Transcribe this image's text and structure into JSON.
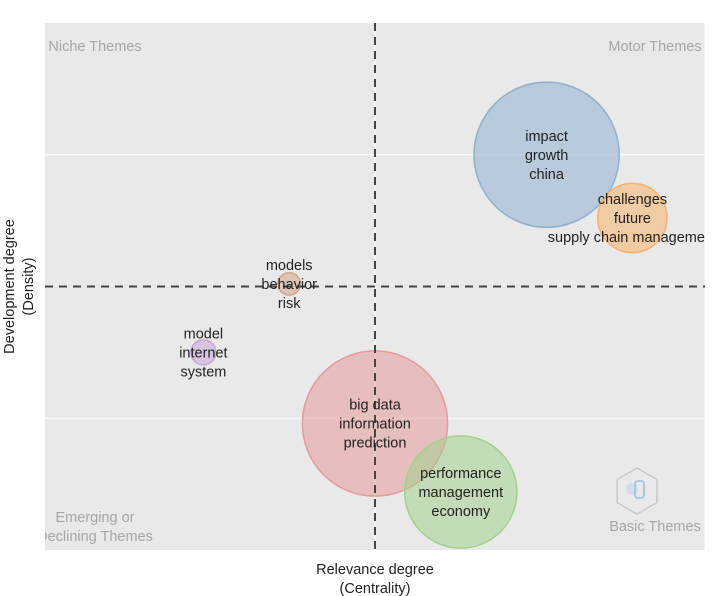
{
  "colors": {
    "plot_background": "#e9e9e9",
    "gridline": "#ffffff",
    "divider": "#444444",
    "quadrant_text": "#a6a6a6"
  },
  "chart_data": {
    "type": "scatter",
    "subtype": "bubble",
    "x_axis": {
      "title_lines": [
        "Relevance degree",
        "(Centrality)"
      ],
      "range": [
        0,
        1
      ],
      "tick_labels": [],
      "gridlines": [
        0.5,
        1.0
      ]
    },
    "y_axis": {
      "title_lines": [
        "Development degree",
        "(Density)"
      ],
      "range": [
        0,
        1
      ],
      "tick_labels": [],
      "gridlines": [
        0.25,
        0.75
      ]
    },
    "dividers": {
      "x": 0.5,
      "y": 0.5,
      "style": "dashed"
    },
    "quadrant_labels": [
      {
        "id": "niche",
        "lines": [
          "Niche Themes"
        ],
        "position": "top-left"
      },
      {
        "id": "motor",
        "lines": [
          "Motor Themes"
        ],
        "position": "top-right"
      },
      {
        "id": "emerging",
        "lines": [
          "Emerging or",
          "Declining Themes"
        ],
        "position": "bottom-left"
      },
      {
        "id": "basic",
        "lines": [
          "Basic Themes"
        ],
        "position": "bottom-right"
      }
    ],
    "series": [
      {
        "terms": [
          "impact",
          "growth",
          "china"
        ],
        "x": 0.76,
        "y": 0.75,
        "size": 0.22,
        "color": "#8fb0cf"
      },
      {
        "terms": [
          "challenges",
          "future",
          "supply chain management"
        ],
        "x": 0.89,
        "y": 0.63,
        "size": 0.105,
        "color": "#f6b26b"
      },
      {
        "terms": [
          "models",
          "behavior",
          "risk"
        ],
        "x": 0.37,
        "y": 0.505,
        "size": 0.034,
        "color": "#d4a88c"
      },
      {
        "terms": [
          "model",
          "internet",
          "system"
        ],
        "x": 0.24,
        "y": 0.375,
        "size": 0.038,
        "color": "#c9a6d9"
      },
      {
        "terms": [
          "big data",
          "information",
          "prediction"
        ],
        "x": 0.5,
        "y": 0.24,
        "size": 0.22,
        "color": "#e69a9a"
      },
      {
        "terms": [
          "performance",
          "management",
          "economy"
        ],
        "x": 0.63,
        "y": 0.11,
        "size": 0.17,
        "color": "#a4d08d"
      }
    ]
  }
}
